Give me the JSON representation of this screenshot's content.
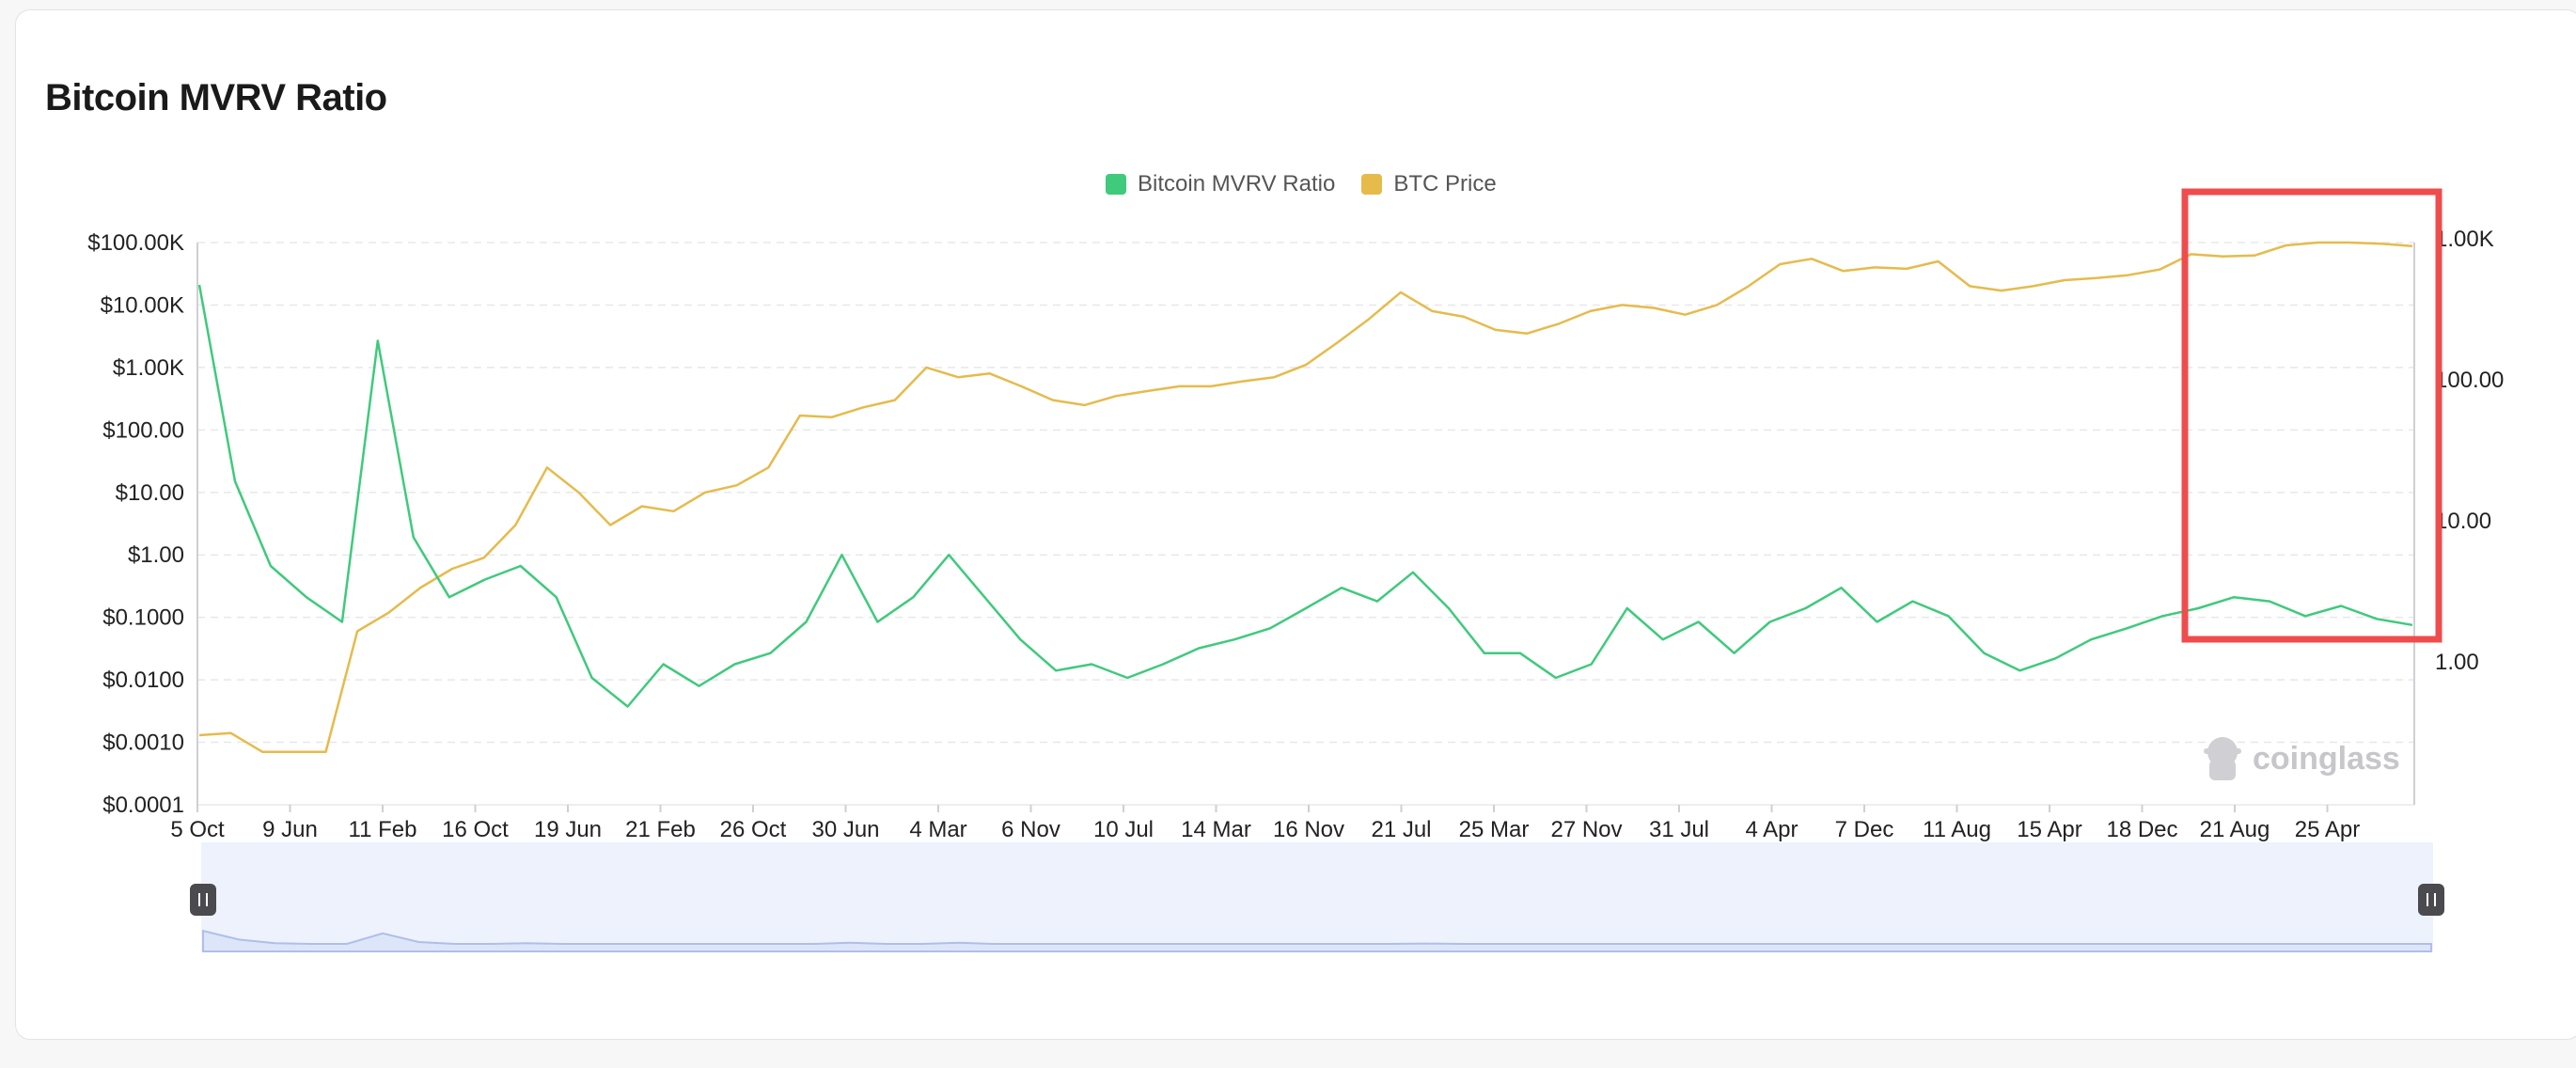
{
  "page": {
    "title": "Bitcoin MVRV Ratio"
  },
  "legend": [
    {
      "label": "Bitcoin MVRV Ratio",
      "color": "#3fca7c"
    },
    {
      "label": "BTC Price",
      "color": "#e6bb4c"
    }
  ],
  "watermark": "coinglass",
  "highlight_color": "#ef4c4c",
  "chart_data": {
    "type": "line",
    "title": "Bitcoin MVRV Ratio",
    "scale": "log",
    "left_axis": {
      "ticks": [
        "$100.00K",
        "$10.00K",
        "$1.00K",
        "$100.00",
        "$10.00",
        "$1.00",
        "$0.1000",
        "$0.0100",
        "$0.0010",
        "$0.0001"
      ],
      "range": [
        0.0001,
        100000
      ]
    },
    "right_axis": {
      "ticks": [
        "1.00K",
        "100.00",
        "10.00",
        "1.00"
      ],
      "range": [
        0.1,
        1000
      ]
    },
    "x_ticks": [
      "5 Oct",
      "9 Jun",
      "11 Feb",
      "16 Oct",
      "19 Jun",
      "21 Feb",
      "26 Oct",
      "30 Jun",
      "4 Mar",
      "6 Nov",
      "10 Jul",
      "14 Mar",
      "16 Nov",
      "21 Jul",
      "25 Mar",
      "27 Nov",
      "31 Jul",
      "4 Apr",
      "7 Dec",
      "11 Aug",
      "15 Apr",
      "18 Dec",
      "21 Aug",
      "25 Apr"
    ],
    "series": [
      {
        "name": "BTC Price",
        "axis": "left",
        "color": "#e6bb4c",
        "values": [
          0.0013,
          0.0014,
          0.0007,
          0.0007,
          0.0007,
          0.06,
          0.12,
          0.3,
          0.6,
          0.9,
          3,
          25,
          10,
          3,
          6,
          5,
          10,
          13,
          25,
          170,
          160,
          230,
          300,
          1000,
          700,
          800,
          500,
          300,
          250,
          350,
          420,
          500,
          500,
          600,
          700,
          1100,
          2500,
          6000,
          16000,
          8000,
          6500,
          4000,
          3500,
          5000,
          8000,
          10000,
          9000,
          7000,
          10000,
          20000,
          45000,
          55000,
          35000,
          40000,
          38000,
          50000,
          20000,
          17000,
          20000,
          25000,
          27000,
          30000,
          37000,
          65000,
          60000,
          62000,
          90000,
          100000,
          105000,
          96000,
          88000
        ]
      },
      {
        "name": "Bitcoin MVRV Ratio",
        "axis": "right",
        "color": "#3fca7c",
        "values": [
          500,
          20,
          5,
          3,
          2,
          200,
          8,
          3,
          4,
          5,
          3,
          0.8,
          0.5,
          1,
          0.7,
          1,
          1.2,
          2,
          6,
          2,
          3,
          6,
          3,
          1.5,
          0.9,
          1,
          0.8,
          1,
          1.3,
          1.5,
          1.8,
          2.5,
          3.5,
          2.8,
          4.5,
          2.5,
          1.2,
          1.2,
          0.8,
          1,
          2.5,
          1.5,
          2,
          1.2,
          2,
          2.5,
          3.5,
          2,
          2.8,
          2.2,
          1.2,
          0.9,
          1.1,
          1.5,
          1.8,
          2.2,
          2.5,
          3,
          2.8,
          2.2,
          2.6,
          2.1,
          1.9
        ]
      }
    ]
  }
}
